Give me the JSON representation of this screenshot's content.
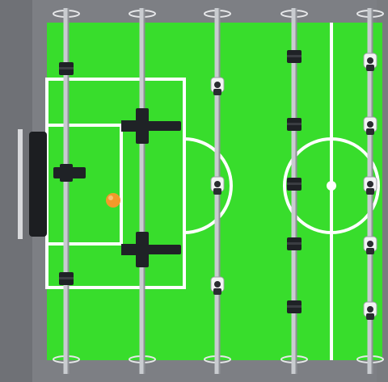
{
  "game": {
    "type": "foosball-table",
    "view": "top-down",
    "colors": {
      "frame": "#7d7f84",
      "frame_inner": "#8c8e93",
      "pitch": "#38dd2c",
      "pitch_dark": "#2fcf26",
      "lines": "#ffffff",
      "rod": "#c9ccd0",
      "rod_shadow": "#8e9196",
      "team_dark": "#1f2226",
      "team_light": "#f2f3f4",
      "ball": "#f39a2a",
      "goal": "#1c1e21"
    },
    "ball": {
      "label": "ball"
    },
    "goal": {
      "side": "left",
      "label": "goal"
    },
    "rods": [
      {
        "id": "rod-1",
        "team": "dark",
        "players": 3
      },
      {
        "id": "rod-2",
        "team": "dark",
        "players": 2
      },
      {
        "id": "rod-3",
        "team": "light",
        "players": 3
      },
      {
        "id": "rod-4",
        "team": "dark",
        "players": 5
      },
      {
        "id": "rod-5",
        "team": "light",
        "players": 5
      }
    ]
  }
}
